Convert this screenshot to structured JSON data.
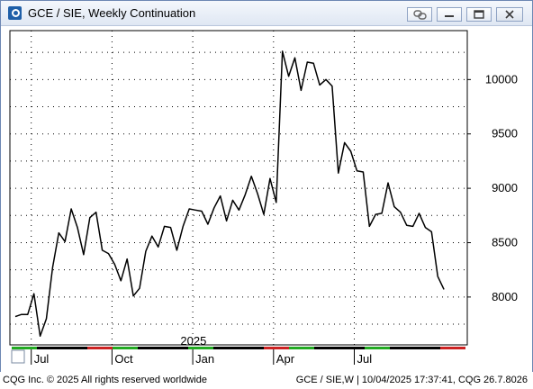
{
  "window": {
    "title": "GCE / SIE, Weekly Continuation",
    "icons": [
      "app-logo-icon",
      "link-icon",
      "minimize-icon",
      "restore-icon",
      "close-icon"
    ]
  },
  "chart_data": {
    "type": "line",
    "title": "GCE / SIE, Weekly Continuation",
    "xlabel": "",
    "ylabel": "",
    "y_ticks": [
      8000,
      8500,
      9000,
      9500,
      10000
    ],
    "ylim": [
      7560,
      10450
    ],
    "x_ticks": [
      {
        "label": "Jul",
        "index": 3
      },
      {
        "label": "Oct",
        "index": 16
      },
      {
        "label": "Jan",
        "index": 29
      },
      {
        "label": "Apr",
        "index": 42
      },
      {
        "label": "Jul",
        "index": 55
      }
    ],
    "year_marker": {
      "label": "2025",
      "index": 26
    },
    "grid": true,
    "line_color": "#000000",
    "series": [
      {
        "values": [
          7820,
          7840,
          7840,
          8030,
          7640,
          7800,
          8270,
          8590,
          8510,
          8810,
          8640,
          8390,
          8730,
          8780,
          8430,
          8400,
          8300,
          8150,
          8350,
          8010,
          8080,
          8420,
          8560,
          8460,
          8650,
          8640,
          8430,
          8650,
          8810,
          8800,
          8790,
          8670,
          8820,
          8930,
          8700,
          8890,
          8800,
          8940,
          9110,
          8950,
          8760,
          9090,
          8870,
          10260,
          10030,
          10200,
          9900,
          10160,
          10150,
          9950,
          10000,
          9940,
          9140,
          9420,
          9340,
          9160,
          9150,
          8650,
          8760,
          8770,
          9050,
          8830,
          8780,
          8660,
          8650,
          8770,
          8640,
          8600,
          8190,
          8070
        ]
      }
    ]
  },
  "footer": {
    "left": "CQG Inc. © 2025 All rights reserved worldwide",
    "right": "GCE / SIE,W | 10/04/2025 17:37:41, CQG 26.7.8026"
  }
}
